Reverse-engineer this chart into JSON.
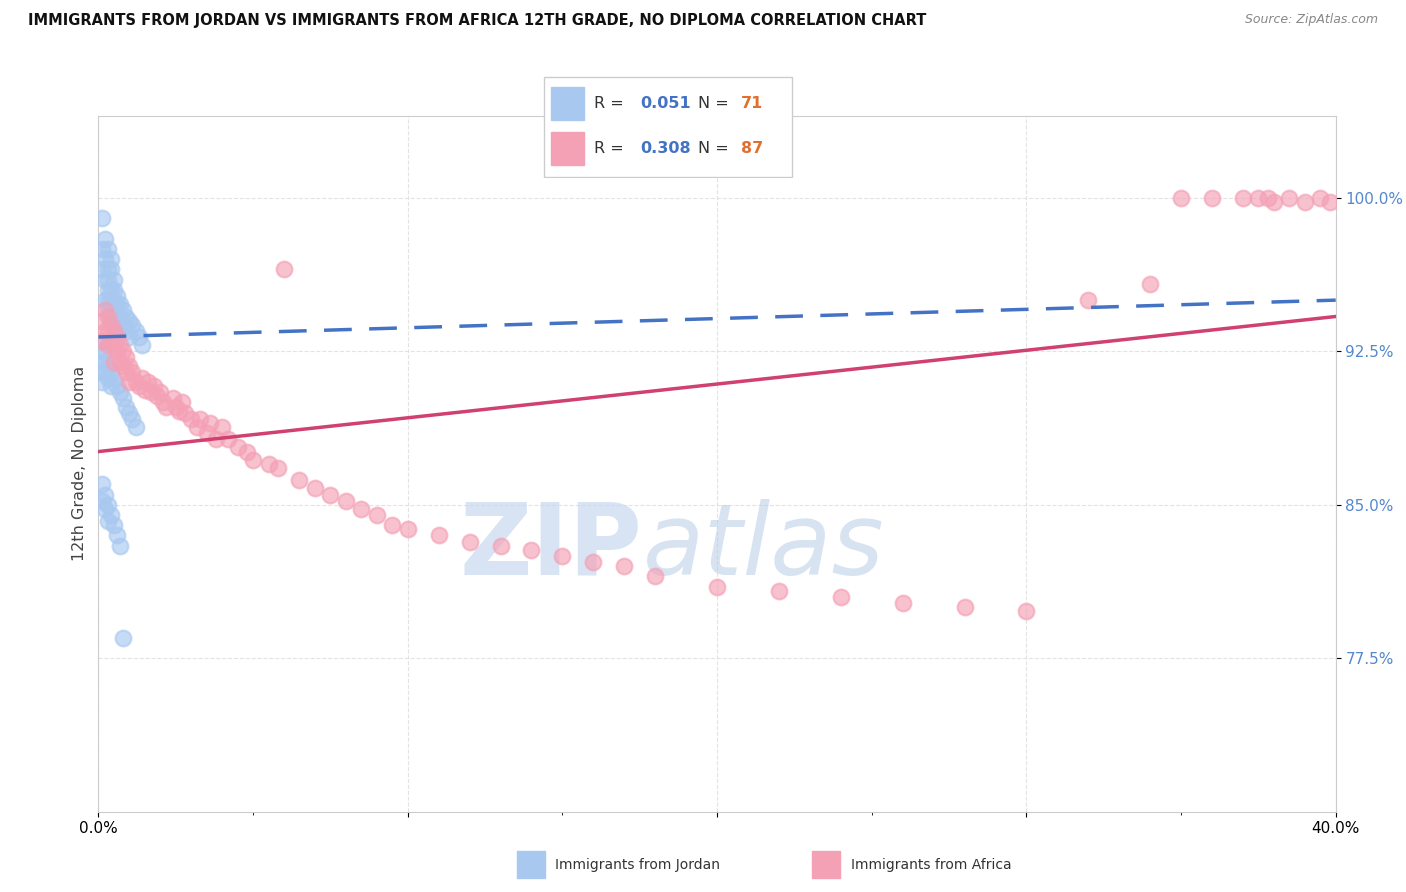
{
  "title": "IMMIGRANTS FROM JORDAN VS IMMIGRANTS FROM AFRICA 12TH GRADE, NO DIPLOMA CORRELATION CHART",
  "source": "Source: ZipAtlas.com",
  "ylabel": "12th Grade, No Diploma",
  "yticks": [
    0.775,
    0.85,
    0.925,
    1.0
  ],
  "ytick_labels": [
    "77.5%",
    "85.0%",
    "92.5%",
    "100.0%"
  ],
  "xlim": [
    0.0,
    0.4
  ],
  "ylim": [
    0.7,
    1.04
  ],
  "blue_color": "#A8C8F0",
  "pink_color": "#F4A0B5",
  "trend_blue": "#4472C4",
  "trend_pink": "#D04070",
  "watermark_zip_color": "#C8D8F0",
  "watermark_atlas_color": "#B8D0E8",
  "jordan_x": [
    0.001,
    0.001,
    0.001,
    0.002,
    0.002,
    0.002,
    0.002,
    0.003,
    0.003,
    0.003,
    0.003,
    0.003,
    0.003,
    0.004,
    0.004,
    0.004,
    0.004,
    0.004,
    0.004,
    0.005,
    0.005,
    0.005,
    0.005,
    0.005,
    0.006,
    0.006,
    0.006,
    0.007,
    0.007,
    0.007,
    0.008,
    0.008,
    0.009,
    0.009,
    0.01,
    0.01,
    0.011,
    0.012,
    0.013,
    0.014,
    0.001,
    0.001,
    0.001,
    0.001,
    0.001,
    0.002,
    0.002,
    0.002,
    0.003,
    0.003,
    0.004,
    0.004,
    0.005,
    0.006,
    0.007,
    0.008,
    0.009,
    0.01,
    0.011,
    0.012,
    0.001,
    0.001,
    0.002,
    0.002,
    0.003,
    0.003,
    0.004,
    0.005,
    0.006,
    0.007,
    0.008
  ],
  "jordan_y": [
    0.99,
    0.975,
    0.965,
    0.98,
    0.97,
    0.96,
    0.95,
    0.975,
    0.965,
    0.96,
    0.955,
    0.95,
    0.945,
    0.97,
    0.965,
    0.955,
    0.95,
    0.945,
    0.94,
    0.96,
    0.955,
    0.948,
    0.942,
    0.938,
    0.952,
    0.948,
    0.942,
    0.948,
    0.942,
    0.935,
    0.945,
    0.938,
    0.942,
    0.935,
    0.94,
    0.932,
    0.938,
    0.935,
    0.932,
    0.928,
    0.93,
    0.925,
    0.92,
    0.915,
    0.91,
    0.925,
    0.92,
    0.915,
    0.918,
    0.912,
    0.915,
    0.908,
    0.912,
    0.908,
    0.905,
    0.902,
    0.898,
    0.895,
    0.892,
    0.888,
    0.86,
    0.852,
    0.855,
    0.848,
    0.85,
    0.842,
    0.845,
    0.84,
    0.835,
    0.83,
    0.785
  ],
  "africa_x": [
    0.001,
    0.001,
    0.002,
    0.002,
    0.003,
    0.003,
    0.003,
    0.004,
    0.004,
    0.005,
    0.005,
    0.005,
    0.006,
    0.006,
    0.007,
    0.007,
    0.008,
    0.008,
    0.009,
    0.009,
    0.01,
    0.01,
    0.011,
    0.012,
    0.013,
    0.014,
    0.015,
    0.016,
    0.017,
    0.018,
    0.019,
    0.02,
    0.021,
    0.022,
    0.024,
    0.025,
    0.026,
    0.027,
    0.028,
    0.03,
    0.032,
    0.033,
    0.035,
    0.036,
    0.038,
    0.04,
    0.042,
    0.045,
    0.048,
    0.05,
    0.055,
    0.058,
    0.06,
    0.065,
    0.07,
    0.075,
    0.08,
    0.085,
    0.09,
    0.095,
    0.1,
    0.11,
    0.12,
    0.13,
    0.14,
    0.15,
    0.16,
    0.17,
    0.18,
    0.2,
    0.22,
    0.24,
    0.26,
    0.28,
    0.3,
    0.32,
    0.34,
    0.35,
    0.36,
    0.37,
    0.375,
    0.378,
    0.38,
    0.385,
    0.39,
    0.395,
    0.398
  ],
  "africa_y": [
    0.94,
    0.93,
    0.945,
    0.935,
    0.942,
    0.935,
    0.928,
    0.938,
    0.93,
    0.935,
    0.928,
    0.92,
    0.932,
    0.925,
    0.928,
    0.92,
    0.925,
    0.918,
    0.922,
    0.915,
    0.918,
    0.91,
    0.915,
    0.91,
    0.908,
    0.912,
    0.906,
    0.91,
    0.905,
    0.908,
    0.903,
    0.905,
    0.9,
    0.898,
    0.902,
    0.898,
    0.896,
    0.9,
    0.895,
    0.892,
    0.888,
    0.892,
    0.885,
    0.89,
    0.882,
    0.888,
    0.882,
    0.878,
    0.876,
    0.872,
    0.87,
    0.868,
    0.965,
    0.862,
    0.858,
    0.855,
    0.852,
    0.848,
    0.845,
    0.84,
    0.838,
    0.835,
    0.832,
    0.83,
    0.828,
    0.825,
    0.822,
    0.82,
    0.815,
    0.81,
    0.808,
    0.805,
    0.802,
    0.8,
    0.798,
    0.95,
    0.958,
    1.0,
    1.0,
    1.0,
    1.0,
    1.0,
    0.998,
    1.0,
    0.998,
    1.0,
    0.998
  ]
}
